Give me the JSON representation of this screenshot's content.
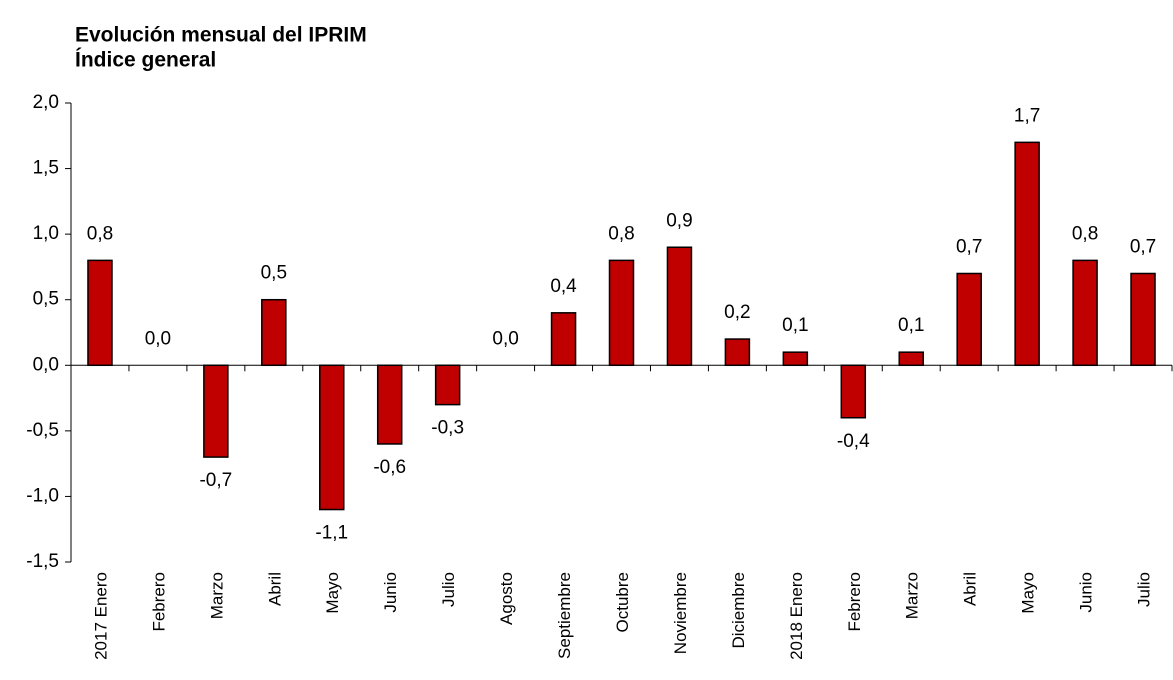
{
  "chart_data": {
    "type": "bar",
    "title": "Evolución mensual del IPRIM",
    "subtitle": "Índice general",
    "categories": [
      "2017 Enero",
      "Febrero",
      "Marzo",
      "Abril",
      "Mayo",
      "Junio",
      "Julio",
      "Agosto",
      "Septiembre",
      "Octubre",
      "Noviembre",
      "Diciembre",
      "2018 Enero",
      "Febrero",
      "Marzo",
      "Abril",
      "Mayo",
      "Junio",
      "Julio"
    ],
    "values": [
      0.8,
      0,
      -0.7,
      0.5,
      -1.1,
      -0.6,
      -0.3,
      0,
      0.4,
      0.8,
      0.9,
      0.2,
      0.1,
      -0.4,
      0.1,
      0.7,
      1.7,
      0.8,
      0.7
    ],
    "value_labels": [
      "0,8",
      "0,0",
      "-0,7",
      "0,5",
      "-1,1",
      "-0,6",
      "-0,3",
      "0,0",
      "0,4",
      "0,8",
      "0,9",
      "0,2",
      "0,1",
      "-0,4",
      "0,1",
      "0,7",
      "1,7",
      "0,8",
      "0,7"
    ],
    "color": "#c00000",
    "ylim": [
      -1.5,
      2
    ],
    "yticks": [
      {
        "value": -1.5,
        "label": "-1,5"
      },
      {
        "value": -1,
        "label": "-1,0"
      },
      {
        "value": -0.5,
        "label": "-0,5"
      },
      {
        "value": 0,
        "label": "0,0"
      },
      {
        "value": 0.5,
        "label": "0,5"
      },
      {
        "value": 1,
        "label": "1,0"
      },
      {
        "value": 1.5,
        "label": "1,5"
      },
      {
        "value": 2,
        "label": "2,0"
      }
    ],
    "grid": false
  }
}
